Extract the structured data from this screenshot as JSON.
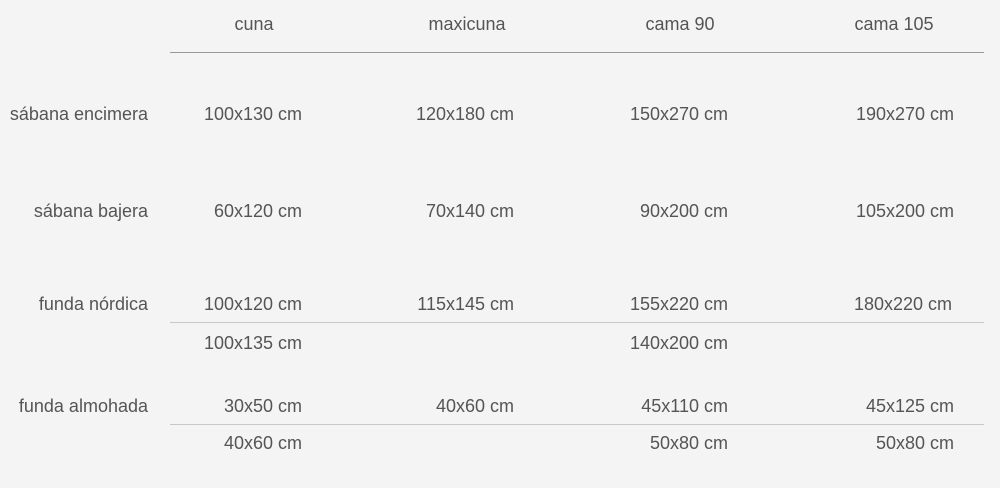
{
  "headers": [
    "cuna",
    "maxicuna",
    "cama 90",
    "cama 105"
  ],
  "rows": [
    {
      "label": "sábana encimera",
      "values": [
        "100x130 cm",
        "120x180 cm",
        "150x270 cm",
        "190x270 cm"
      ]
    },
    {
      "label": "sábana bajera",
      "values": [
        "60x120 cm",
        "70x140 cm",
        "90x200 cm",
        "105x200 cm"
      ]
    },
    {
      "label": "funda nórdica",
      "values": [
        "100x120 cm",
        "115x145 cm",
        "155x220 cm",
        "180x220 cm"
      ],
      "alt": [
        "100x135 cm",
        "",
        "140x200 cm",
        ""
      ]
    },
    {
      "label": "funda almohada",
      "values": [
        "30x50 cm",
        "40x60 cm",
        "45x110 cm",
        "45x125 cm"
      ],
      "alt": [
        "40x60 cm",
        "",
        "50x80 cm",
        "50x80 cm"
      ]
    }
  ]
}
